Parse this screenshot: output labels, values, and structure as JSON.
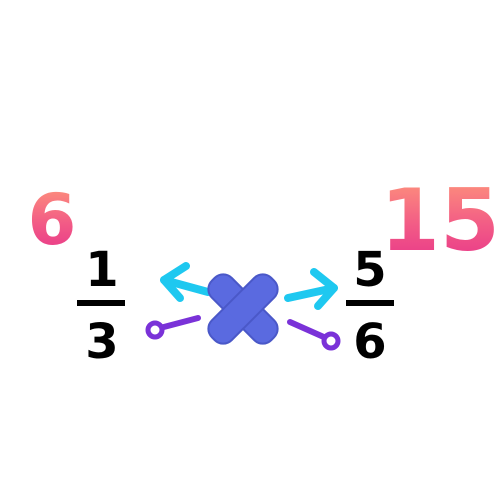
{
  "left_fraction": {
    "numerator": "1",
    "denominator": "3"
  },
  "right_fraction": {
    "numerator": "5",
    "denominator": "6"
  },
  "cross_products": {
    "left": "6",
    "right": "15"
  },
  "colors": {
    "fraction_text": "#000000",
    "cross_symbol": "#5a6ae0",
    "cross_symbol_outline": "#4a58c8",
    "arrow_up": "#1ec8f0",
    "connector_down": "#7a32d8",
    "handwriting_top": "#ff9a7a",
    "handwriting_bottom": "#e6308a"
  },
  "icons": [
    "multiply-cross-icon",
    "arrow-up-left-icon",
    "arrow-up-right-icon",
    "connector-dot-left-icon",
    "connector-dot-right-icon"
  ]
}
